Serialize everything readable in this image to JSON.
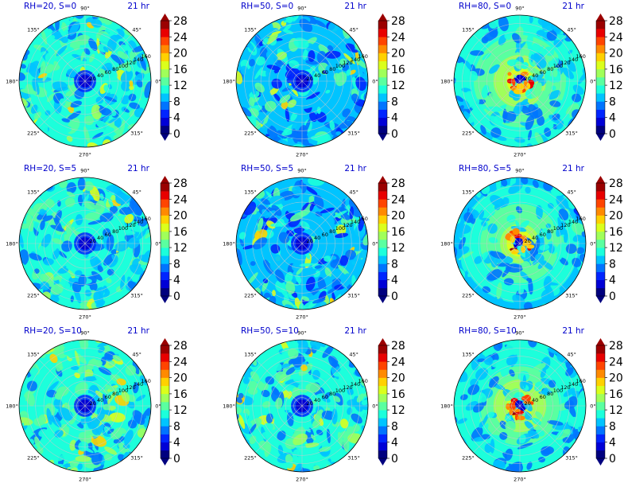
{
  "figure": {
    "layout": {
      "rows": 3,
      "cols": 3
    },
    "colormap": [
      "#00007f",
      "#0000d6",
      "#0025ff",
      "#0074ff",
      "#00c4ff",
      "#1cffdb",
      "#5affa0",
      "#a0ff5a",
      "#dbff1c",
      "#ffd100",
      "#ff8a00",
      "#ff4400",
      "#e80000",
      "#9b0000"
    ],
    "colorbar_ticks": [
      "0",
      "4",
      "8",
      "12",
      "16",
      "20",
      "24",
      "28"
    ],
    "angle_labels": [
      "0°",
      "45°",
      "90°",
      "135°",
      "180°",
      "225°",
      "270°",
      "315°"
    ],
    "radial_labels": [
      "20",
      "40",
      "60",
      "80",
      "100",
      "120",
      "140",
      "160"
    ]
  },
  "chart_data": [
    {
      "type": "heatmap",
      "title_left": "RH=20, S=0",
      "title_right": "21 hr",
      "projection": "polar",
      "rmax": 160,
      "theta_ticks_deg": [
        0,
        45,
        90,
        135,
        180,
        225,
        270,
        315
      ],
      "r_ticks": [
        20,
        40,
        60,
        80,
        100,
        120,
        140,
        160
      ],
      "clim": [
        0,
        28
      ],
      "pattern": "uniform-low",
      "mean_value": 10
    },
    {
      "type": "heatmap",
      "title_left": "RH=50, S=0",
      "title_right": "21 hr",
      "projection": "polar",
      "rmax": 160,
      "theta_ticks_deg": [
        0,
        45,
        90,
        135,
        180,
        225,
        270,
        315
      ],
      "r_ticks": [
        20,
        40,
        60,
        80,
        100,
        120,
        140,
        160
      ],
      "clim": [
        0,
        28
      ],
      "pattern": "uniform-low",
      "mean_value": 9
    },
    {
      "type": "heatmap",
      "title_left": "RH=80, S=0",
      "title_right": "21 hr",
      "projection": "polar",
      "rmax": 160,
      "theta_ticks_deg": [
        0,
        45,
        90,
        135,
        180,
        225,
        270,
        315
      ],
      "r_ticks": [
        20,
        40,
        60,
        80,
        100,
        120,
        140,
        160
      ],
      "clim": [
        0,
        28
      ],
      "pattern": "eyewall",
      "mean_value": 13
    },
    {
      "type": "heatmap",
      "title_left": "RH=20, S=5",
      "title_right": "21 hr",
      "projection": "polar",
      "rmax": 160,
      "theta_ticks_deg": [
        0,
        45,
        90,
        135,
        180,
        225,
        270,
        315
      ],
      "r_ticks": [
        20,
        40,
        60,
        80,
        100,
        120,
        140,
        160
      ],
      "clim": [
        0,
        28
      ],
      "pattern": "uniform-low",
      "mean_value": 10
    },
    {
      "type": "heatmap",
      "title_left": "RH=50, S=5",
      "title_right": "21 hr",
      "projection": "polar",
      "rmax": 160,
      "theta_ticks_deg": [
        0,
        45,
        90,
        135,
        180,
        225,
        270,
        315
      ],
      "r_ticks": [
        20,
        40,
        60,
        80,
        100,
        120,
        140,
        160
      ],
      "clim": [
        0,
        28
      ],
      "pattern": "uniform-low",
      "mean_value": 9
    },
    {
      "type": "heatmap",
      "title_left": "RH=80, S=5",
      "title_right": "21 hr",
      "projection": "polar",
      "rmax": 160,
      "theta_ticks_deg": [
        0,
        45,
        90,
        135,
        180,
        225,
        270,
        315
      ],
      "r_ticks": [
        20,
        40,
        60,
        80,
        100,
        120,
        140,
        160
      ],
      "clim": [
        0,
        28
      ],
      "pattern": "eyewall",
      "mean_value": 14
    },
    {
      "type": "heatmap",
      "title_left": "RH=20, S=10",
      "title_right": "21 hr",
      "projection": "polar",
      "rmax": 160,
      "theta_ticks_deg": [
        0,
        45,
        90,
        135,
        180,
        225,
        270,
        315
      ],
      "r_ticks": [
        20,
        40,
        60,
        80,
        100,
        120,
        140,
        160
      ],
      "clim": [
        0,
        28
      ],
      "pattern": "uniform-low",
      "mean_value": 11
    },
    {
      "type": "heatmap",
      "title_left": "RH=50, S=10",
      "title_right": "21 hr",
      "projection": "polar",
      "rmax": 160,
      "theta_ticks_deg": [
        0,
        45,
        90,
        135,
        180,
        225,
        270,
        315
      ],
      "r_ticks": [
        20,
        40,
        60,
        80,
        100,
        120,
        140,
        160
      ],
      "clim": [
        0,
        28
      ],
      "pattern": "uniform-low",
      "mean_value": 10
    },
    {
      "type": "heatmap",
      "title_left": "RH=80, S=10",
      "title_right": "21 hr",
      "projection": "polar",
      "rmax": 160,
      "theta_ticks_deg": [
        0,
        45,
        90,
        135,
        180,
        225,
        270,
        315
      ],
      "r_ticks": [
        20,
        40,
        60,
        80,
        100,
        120,
        140,
        160
      ],
      "clim": [
        0,
        28
      ],
      "pattern": "eyewall",
      "mean_value": 15
    }
  ]
}
